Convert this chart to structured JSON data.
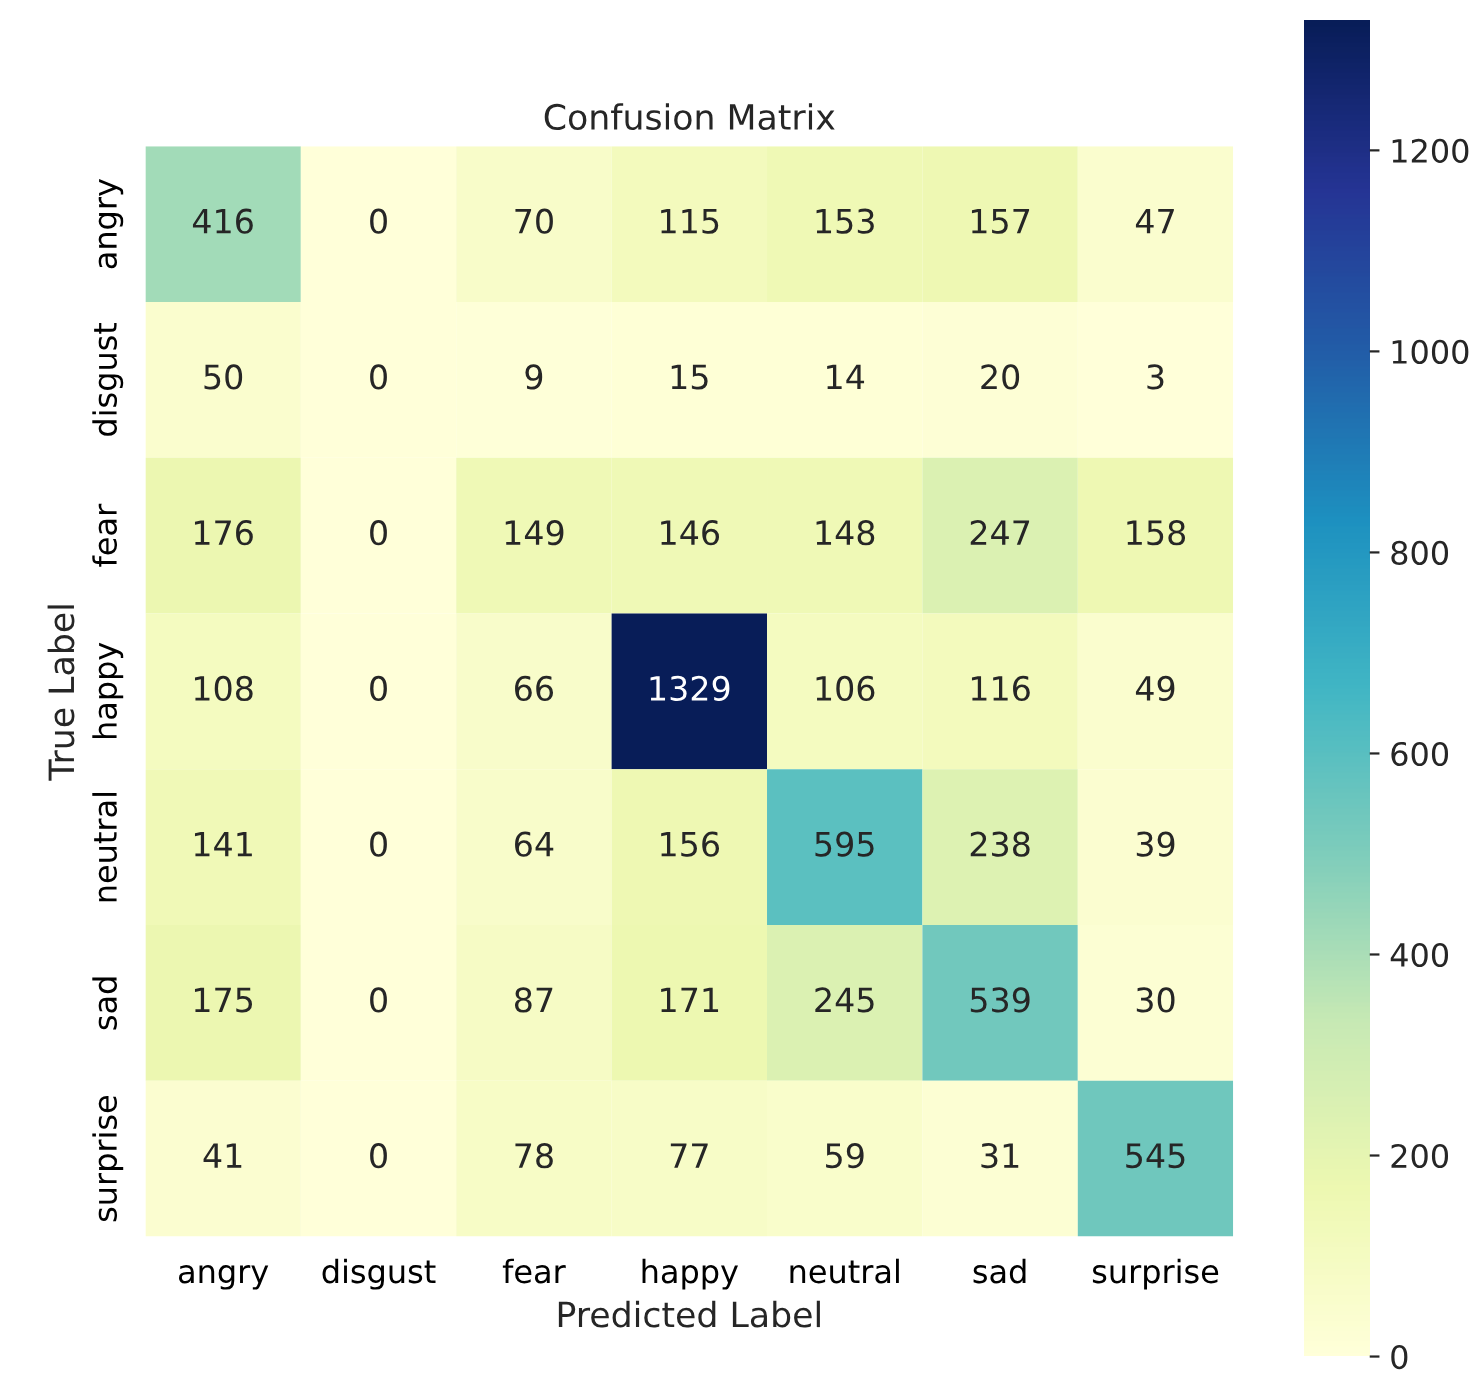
{
  "chart_data": {
    "type": "heatmap",
    "title": "Confusion Matrix",
    "xlabel": "Predicted Label",
    "ylabel": "True Label",
    "categories": [
      "angry",
      "disgust",
      "fear",
      "happy",
      "neutral",
      "sad",
      "surprise"
    ],
    "y_categories": [
      "angry",
      "disgust",
      "fear",
      "happy",
      "neutral",
      "sad",
      "surprise"
    ],
    "cells": [
      [
        416,
        0,
        70,
        115,
        153,
        157,
        47
      ],
      [
        50,
        0,
        9,
        15,
        14,
        20,
        3
      ],
      [
        176,
        0,
        149,
        146,
        148,
        247,
        158
      ],
      [
        108,
        0,
        66,
        1329,
        106,
        116,
        49
      ],
      [
        141,
        0,
        64,
        156,
        595,
        238,
        39
      ],
      [
        175,
        0,
        87,
        171,
        245,
        539,
        30
      ],
      [
        41,
        0,
        78,
        77,
        59,
        31,
        545
      ]
    ],
    "data_labels": true,
    "clim": [
      0,
      1329
    ],
    "cticks": [
      0,
      200,
      400,
      600,
      800,
      1000,
      1200
    ]
  }
}
